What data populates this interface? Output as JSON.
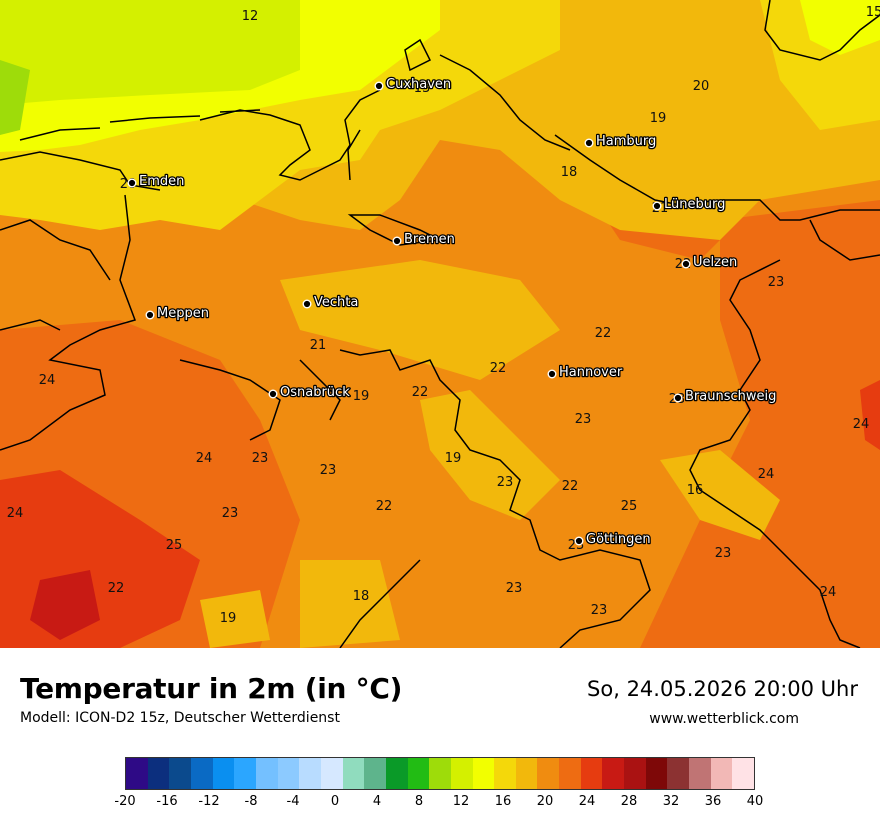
{
  "map": {
    "cities": [
      {
        "name": "Cuxhaven"
      },
      {
        "name": "Hamburg"
      },
      {
        "name": "Emden"
      },
      {
        "name": "Lüneburg"
      },
      {
        "name": "Bremen"
      },
      {
        "name": "Uelzen"
      },
      {
        "name": "Vechta"
      },
      {
        "name": "Meppen"
      },
      {
        "name": "Hannover"
      },
      {
        "name": "Osnabrück"
      },
      {
        "name": "Braunschweig"
      },
      {
        "name": "Göttingen"
      }
    ],
    "values": [
      "12",
      "15",
      "13",
      "20",
      "19",
      "18",
      "20",
      "21",
      "22",
      "23",
      "22",
      "21",
      "24",
      "19",
      "22",
      "22",
      "23",
      "23",
      "24",
      "24",
      "19",
      "24",
      "23",
      "23",
      "23",
      "22",
      "16",
      "24",
      "23",
      "25",
      "25",
      "22",
      "22",
      "23",
      "23",
      "18",
      "23",
      "19",
      "24",
      "23"
    ]
  },
  "footer": {
    "title": "Temperatur in 2m (in °C)",
    "subtitle": "Modell: ICON-D2 15z, Deutscher Wetterdienst",
    "datetime": "So, 24.05.2026 20:00 Uhr",
    "site": "www.wetterblick.com"
  },
  "legend": {
    "colors": [
      "#2e0a86",
      "#0c2f7e",
      "#0b4a8d",
      "#0a6ac4",
      "#0a8ff0",
      "#2ba6ff",
      "#74c0ff",
      "#8ccaff",
      "#b8dcff",
      "#d6e8ff",
      "#90dcbe",
      "#5eb48c",
      "#0a9a28",
      "#22bc14",
      "#9edc0a",
      "#d4f000",
      "#f2ff00",
      "#f4d80a",
      "#f2b80c",
      "#f08c10",
      "#ee6c12",
      "#e63c10",
      "#c81a14",
      "#aa1212",
      "#7e0808",
      "#8c3232",
      "#c07474",
      "#f2b8b6",
      "#ffe2e6"
    ],
    "ticks": [
      "-20",
      "-16",
      "-12",
      "-8",
      "-4",
      "0",
      "4",
      "8",
      "12",
      "16",
      "20",
      "24",
      "28",
      "32",
      "36",
      "40"
    ]
  }
}
